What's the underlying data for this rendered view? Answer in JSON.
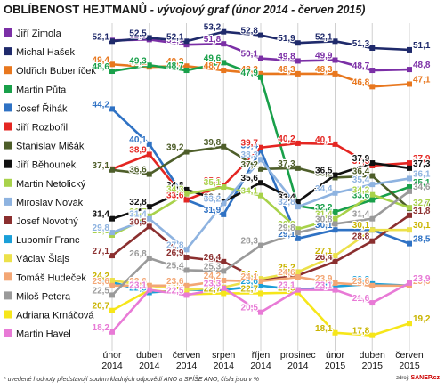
{
  "chart_data": {
    "type": "line",
    "title": "OBLÍBENOST HEJTMANŮ",
    "subtitle": "- vývojový graf (únor 2014 - červen 2015)",
    "footnote": "* uvedené hodnoty představují souhrn kladných odpovědí ANO a SPÍŠE ANO; čísla jsou v %",
    "source_label": "zdroj:",
    "source_brand": "SANEP.cz",
    "x": [
      [
        "únor",
        "2014"
      ],
      [
        "duben",
        "2014"
      ],
      [
        "červen",
        "2014"
      ],
      [
        "srpen",
        "2014"
      ],
      [
        "říjen",
        "2014"
      ],
      [
        "prosinec",
        "2014"
      ],
      [
        "únor",
        "2015"
      ],
      [
        "duben",
        "2015"
      ],
      [
        "červen",
        "2015"
      ]
    ],
    "ylim": [
      16,
      54
    ],
    "legend_position": "left",
    "series": [
      {
        "name": "Jiří Zimola",
        "color": "#7b2fa6",
        "values": [
          52.2,
          52.3,
          51.7,
          51.8,
          50.1,
          49.8,
          49.9,
          48.7,
          48.8
        ]
      },
      {
        "name": "Michal Hašek",
        "color": "#1f2a6b",
        "values": [
          52.1,
          52.5,
          52.1,
          53.2,
          52.8,
          51.9,
          52.1,
          51.3,
          51.1
        ]
      },
      {
        "name": "Oldřich Bubeníček",
        "color": "#e8771e",
        "values": [
          49.4,
          49.1,
          49.2,
          48.7,
          48.3,
          48.3,
          48.3,
          46.8,
          47.1
        ]
      },
      {
        "name": "Martin Půta",
        "color": "#19a04a",
        "values": [
          48.6,
          49.3,
          48.7,
          49.6,
          47.9,
          32.9,
          32.2,
          33.6,
          35.1
        ]
      },
      {
        "name": "Josef Řihák",
        "color": "#2f72c4",
        "values": [
          44.2,
          40.1,
          33.6,
          31.9,
          39.4,
          29.1,
          30.1,
          30.1,
          28.5
        ]
      },
      {
        "name": "Jiří Rozbořil",
        "color": "#e42622",
        "values": [
          37.2,
          38.9,
          33.6,
          35.3,
          39.7,
          40.2,
          40.1,
          37.6,
          37.9
        ]
      },
      {
        "name": "Stanislav Mišák",
        "color": "#4e5e2a",
        "values": [
          37.1,
          36.6,
          39.2,
          39.8,
          37.2,
          37.3,
          36.2,
          36.4,
          32.6
        ]
      },
      {
        "name": "Jiří Běhounek",
        "color": "#111111",
        "values": [
          31.4,
          32.8,
          34.8,
          33.4,
          35.6,
          33.4,
          36.5,
          37.9,
          37.3
        ]
      },
      {
        "name": "Martin Netolický",
        "color": "#a8d24a",
        "values": [
          29.5,
          31.7,
          34.3,
          35.1,
          34.1,
          30.2,
          31.4,
          34.2,
          32.7
        ]
      },
      {
        "name": "Miroslav Novák",
        "color": "#8eb3e0",
        "values": [
          29.8,
          31.4,
          27.8,
          33.2,
          38.3,
          32.8,
          34.4,
          35.4,
          36.1
        ]
      },
      {
        "name": "Josef Novotný",
        "color": "#8b2f2f",
        "values": [
          27.1,
          30.5,
          26.9,
          26.4,
          24.2,
          24.8,
          26.4,
          28.8,
          31.8
        ]
      },
      {
        "name": "Lubomír Franc",
        "color": "#1a9fd8",
        "values": [
          24.0,
          22.8,
          23.1,
          23.1,
          23.6,
          23.1,
          23.5,
          23.8,
          23.6
        ]
      },
      {
        "name": "Václav Šlajs",
        "color": "#ece14a",
        "values": [
          24.2,
          23.6,
          23.1,
          23.4,
          24.4,
          25.2,
          27.1,
          30.1,
          30.1
        ]
      },
      {
        "name": "Tomáš Hudeček",
        "color": "#f3a674",
        "values": [
          23.6,
          23.6,
          23.6,
          24.2,
          24.1,
          24.6,
          23.9,
          23.6,
          23.6
        ]
      },
      {
        "name": "Miloš Petera",
        "color": "#9a9a9a",
        "values": [
          22.5,
          26.8,
          25.4,
          25.3,
          28.3,
          29.8,
          30.8,
          31.4,
          34.6
        ]
      },
      {
        "name": "Adriana Krnáčová",
        "color": "#f6e61a",
        "values": [
          20.7,
          23.1,
          22.6,
          22.7,
          22.7,
          22.8,
          18.1,
          17.8,
          19.2
        ]
      },
      {
        "name": "Martin Havel",
        "color": "#e87ad6",
        "values": [
          18.2,
          23.1,
          22.5,
          23.3,
          20.5,
          23.1,
          23.1,
          21.6,
          23.9
        ]
      }
    ]
  }
}
